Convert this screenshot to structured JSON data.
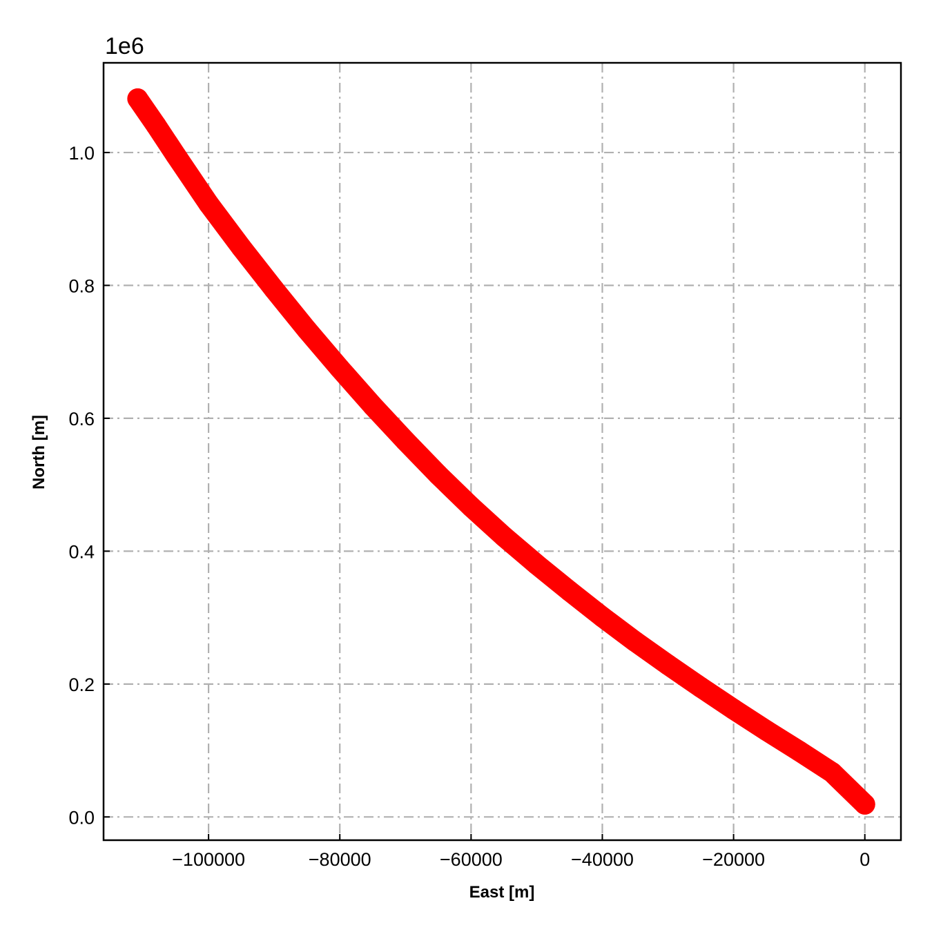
{
  "chart_data": {
    "type": "scatter",
    "xlabel": "East [m]",
    "ylabel": "North [m]",
    "y_offset_text": "1e6",
    "xlim": [
      -116000,
      5500
    ],
    "ylim": [
      -35000,
      1135000
    ],
    "x_ticks": [
      -100000,
      -80000,
      -60000,
      -40000,
      -20000,
      0
    ],
    "x_tick_labels": [
      "−100000",
      "−80000",
      "−60000",
      "−40000",
      "−20000",
      "0"
    ],
    "y_ticks": [
      0,
      200000,
      400000,
      600000,
      800000,
      1000000
    ],
    "y_tick_labels": [
      "0.0",
      "0.2",
      "0.4",
      "0.6",
      "0.8",
      "1.0"
    ],
    "grid": true,
    "series": [
      {
        "color": "#ff0000",
        "points": [
          [
            -110800,
            1081000
          ],
          [
            -108000,
            1041000
          ],
          [
            -105000,
            996000
          ],
          [
            -100000,
            923000
          ],
          [
            -95000,
            857000
          ],
          [
            -90000,
            794000
          ],
          [
            -85000,
            733000
          ],
          [
            -80000,
            675000
          ],
          [
            -75000,
            619000
          ],
          [
            -70000,
            566000
          ],
          [
            -65000,
            515000
          ],
          [
            -60000,
            467000
          ],
          [
            -55000,
            422000
          ],
          [
            -50000,
            380000
          ],
          [
            -45000,
            340000
          ],
          [
            -40000,
            301000
          ],
          [
            -35000,
            264000
          ],
          [
            -30000,
            229000
          ],
          [
            -25000,
            195000
          ],
          [
            -20000,
            162000
          ],
          [
            -15000,
            130000
          ],
          [
            -10000,
            99000
          ],
          [
            -5000,
            67000
          ],
          [
            0,
            19000
          ]
        ]
      }
    ]
  }
}
